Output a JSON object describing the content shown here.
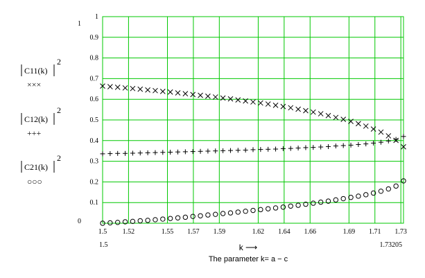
{
  "chart_data": {
    "type": "scatter",
    "title": "",
    "xlabel": "k ⟶",
    "xlabel_sub": "The parameter   k= a − c",
    "ylabel": "",
    "xlim": [
      1.5,
      1.73205
    ],
    "ylim": [
      0,
      1
    ],
    "x_range_labels": {
      "min": "1.5",
      "max": "1.73205"
    },
    "y_range_labels": {
      "max": "1",
      "min": "0"
    },
    "x_ticks": [
      1.5,
      1.52,
      1.55,
      1.57,
      1.59,
      1.62,
      1.64,
      1.66,
      1.69,
      1.71,
      1.73
    ],
    "x_tick_labels": [
      "1.5",
      "1.52",
      "1.55",
      "1.57",
      "1.59",
      "1.62",
      "1.64",
      "1.66",
      "1.69",
      "1.71",
      "1.73"
    ],
    "y_ticks": [
      0.1,
      0.2,
      0.3,
      0.4,
      0.5,
      0.6,
      0.7,
      0.8,
      0.9,
      1
    ],
    "y_tick_labels": [
      "0.1",
      "0.2",
      "0.3",
      "0.4",
      "0.5",
      "0.6",
      "0.7",
      "0.8",
      "0.9",
      "1"
    ],
    "grid": true,
    "grid_color": "#00c800",
    "x_start": 1.5,
    "x_end": 1.73205,
    "n_points": 41,
    "series": [
      {
        "name": "C11(k)",
        "legend_marker_text": "×××",
        "marker": "cross",
        "values": [
          0.664,
          0.661,
          0.658,
          0.655,
          0.652,
          0.649,
          0.645,
          0.642,
          0.638,
          0.635,
          0.631,
          0.627,
          0.623,
          0.619,
          0.615,
          0.611,
          0.606,
          0.602,
          0.597,
          0.592,
          0.587,
          0.582,
          0.577,
          0.571,
          0.565,
          0.559,
          0.552,
          0.545,
          0.538,
          0.53,
          0.521,
          0.512,
          0.503,
          0.493,
          0.482,
          0.47,
          0.456,
          0.441,
          0.423,
          0.401,
          0.37
        ]
      },
      {
        "name": "C12(k)",
        "legend_marker_text": "+++",
        "marker": "plus",
        "values": [
          0.336,
          0.337,
          0.338,
          0.338,
          0.339,
          0.34,
          0.341,
          0.342,
          0.343,
          0.344,
          0.345,
          0.346,
          0.347,
          0.348,
          0.349,
          0.35,
          0.351,
          0.352,
          0.353,
          0.354,
          0.356,
          0.357,
          0.358,
          0.359,
          0.361,
          0.362,
          0.364,
          0.366,
          0.367,
          0.369,
          0.371,
          0.374,
          0.376,
          0.378,
          0.381,
          0.384,
          0.388,
          0.392,
          0.398,
          0.406,
          0.42
        ]
      },
      {
        "name": "C21(k)",
        "legend_marker_text": "○○○",
        "marker": "circle",
        "values": [
          0,
          0.002,
          0.004,
          0.007,
          0.009,
          0.012,
          0.014,
          0.017,
          0.02,
          0.023,
          0.026,
          0.029,
          0.033,
          0.036,
          0.04,
          0.043,
          0.047,
          0.05,
          0.054,
          0.058,
          0.062,
          0.066,
          0.07,
          0.074,
          0.078,
          0.083,
          0.087,
          0.092,
          0.097,
          0.102,
          0.107,
          0.113,
          0.119,
          0.125,
          0.131,
          0.138,
          0.146,
          0.155,
          0.166,
          0.18,
          0.205
        ]
      }
    ],
    "legend": [
      {
        "label": "C11(k)",
        "exponent": "2",
        "marker_text": "×××"
      },
      {
        "label": "C12(k)",
        "exponent": "2",
        "marker_text": "+++"
      },
      {
        "label": "C21(k)",
        "exponent": "2",
        "marker_text": "○○○"
      }
    ]
  }
}
